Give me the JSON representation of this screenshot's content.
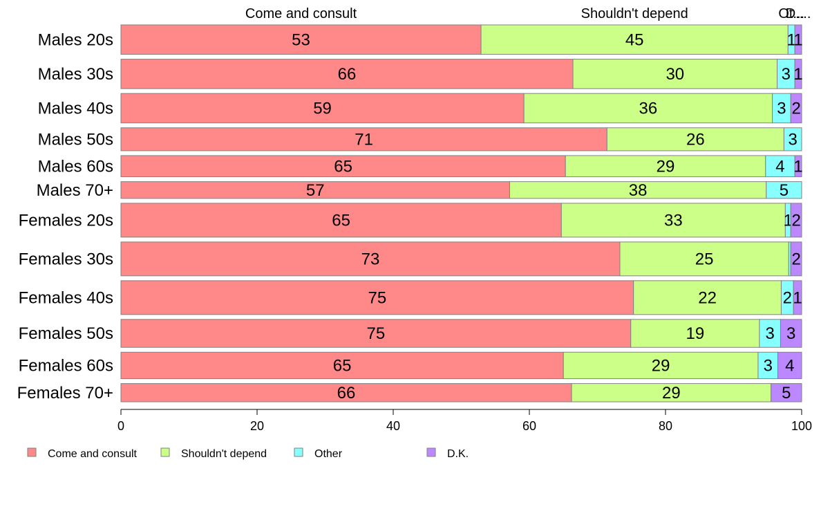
{
  "chart_data": {
    "type": "bar",
    "orientation": "horizontal",
    "stacked": true,
    "xlim": [
      0,
      100
    ],
    "xticks": [
      "0",
      "20",
      "40",
      "60",
      "80",
      "100"
    ],
    "grid": false,
    "legend_position": "bottom-left",
    "top_labels": [
      "Come and consult",
      "Shouldn't depend",
      "Ot...",
      "D...."
    ],
    "categories": [
      "Males 20s",
      "Males 30s",
      "Males 40s",
      "Males 50s",
      "Males 60s",
      "Males 70+",
      "Females 20s",
      "Females 30s",
      "Females 40s",
      "Females 50s",
      "Females 60s",
      "Females 70+"
    ],
    "row_weights": [
      1.0,
      1.0,
      1.0,
      0.78,
      0.72,
      0.57,
      1.15,
      1.15,
      1.15,
      0.95,
      0.9,
      0.62
    ],
    "series": [
      {
        "name": "Come and consult",
        "color": "#ff8888",
        "values": [
          52.9,
          66.4,
          59.2,
          71.4,
          65.3,
          57.1,
          64.7,
          73.3,
          75.3,
          74.9,
          65.0,
          66.2
        ],
        "labels": [
          "53",
          "66",
          "59",
          "71",
          "65",
          "57",
          "65",
          "73",
          "75",
          "75",
          "65",
          "66"
        ]
      },
      {
        "name": "Shouldn't depend",
        "color": "#ccff88",
        "values": [
          45.1,
          30.0,
          36.5,
          26.0,
          29.4,
          37.7,
          32.9,
          24.8,
          21.7,
          18.9,
          28.6,
          29.3
        ],
        "labels": [
          "45",
          "30",
          "36",
          "26",
          "29",
          "38",
          "33",
          "25",
          "22",
          "19",
          "29",
          "29"
        ]
      },
      {
        "name": "Other",
        "color": "#88ffff",
        "values": [
          1.0,
          2.6,
          2.7,
          2.6,
          4.3,
          5.2,
          0.8,
          0.3,
          1.8,
          3.1,
          2.9,
          0.0
        ],
        "labels": [
          "1",
          "3",
          "3",
          "3",
          "4",
          "5",
          "1",
          "",
          "2",
          "3",
          "3",
          ""
        ]
      },
      {
        "name": "D.K.",
        "color": "#bb88ff",
        "values": [
          1.0,
          1.0,
          1.6,
          0.0,
          1.0,
          0.0,
          1.6,
          1.6,
          1.2,
          3.1,
          3.5,
          4.5
        ],
        "labels": [
          "1",
          "1",
          "2",
          "",
          "1",
          "",
          "2",
          "2",
          "1",
          "3",
          "4",
          "5"
        ]
      }
    ]
  }
}
